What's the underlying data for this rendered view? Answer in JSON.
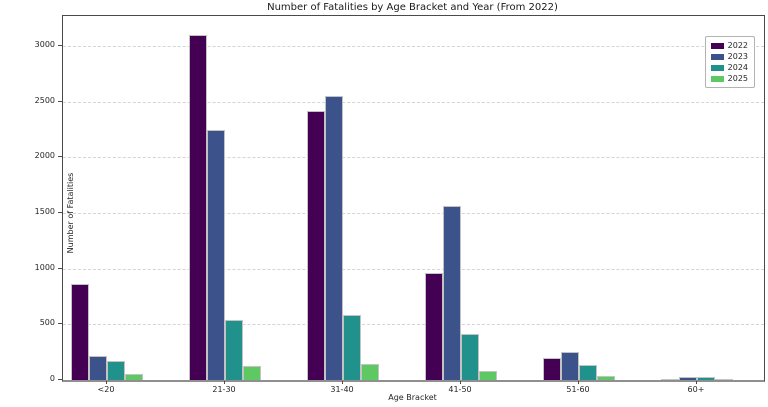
{
  "chart_data": {
    "type": "bar",
    "title": "Number of Fatalities by Age Bracket and Year (From 2022)",
    "xlabel": "Age Bracket",
    "ylabel": "Number of Fatalities",
    "categories": [
      "<20",
      "21-30",
      "31-40",
      "41-50",
      "51-60",
      "60+"
    ],
    "series": [
      {
        "name": "2022",
        "color": "#440154",
        "values": [
          860,
          3100,
          2420,
          960,
          200,
          10
        ]
      },
      {
        "name": "2023",
        "color": "#3b528b",
        "values": [
          220,
          2250,
          2550,
          1560,
          255,
          30
        ]
      },
      {
        "name": "2024",
        "color": "#21918c",
        "values": [
          170,
          540,
          580,
          410,
          135,
          25
        ]
      },
      {
        "name": "2025",
        "color": "#5ec962",
        "values": [
          55,
          130,
          145,
          85,
          35,
          5
        ]
      }
    ],
    "yticks": [
      0,
      500,
      1000,
      1500,
      2000,
      2500,
      3000
    ],
    "ylim": [
      0,
      3270
    ],
    "grid": true,
    "grid_style": "dashed",
    "legend_position": "upper right",
    "background_color": "#ffffff"
  }
}
